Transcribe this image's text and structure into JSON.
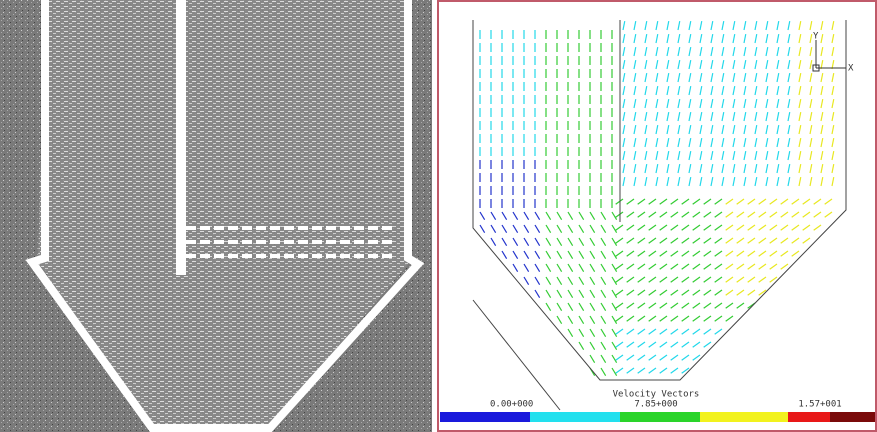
{
  "colorbar": {
    "title": "Velocity Vectors",
    "labels": [
      "0.00+000",
      "7.85+000",
      "1.57+001"
    ]
  },
  "axes": {
    "y": "Y",
    "x": "X"
  }
}
